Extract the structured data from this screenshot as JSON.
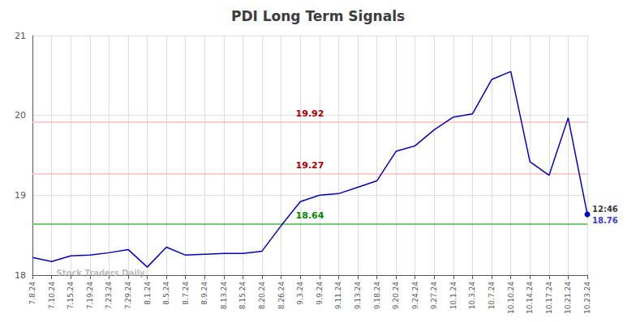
{
  "chart_data": {
    "type": "line",
    "title": "PDI Long Term Signals",
    "categories": [
      "7.8.24",
      "7.10.24",
      "7.15.24",
      "7.19.24",
      "7.23.24",
      "7.29.24",
      "8.1.24",
      "8.5.24",
      "8.7.24",
      "8.9.24",
      "8.13.24",
      "8.15.24",
      "8.20.24",
      "8.26.24",
      "9.3.24",
      "9.9.24",
      "9.11.24",
      "9.13.24",
      "9.18.24",
      "9.20.24",
      "9.24.24",
      "9.27.24",
      "10.1.24",
      "10.3.24",
      "10.7.24",
      "10.10.24",
      "10.14.24",
      "10.17.24",
      "10.21.24",
      "10.23.24"
    ],
    "values": [
      18.22,
      18.17,
      18.24,
      18.25,
      18.28,
      18.32,
      18.1,
      18.35,
      18.25,
      18.26,
      18.27,
      18.27,
      18.3,
      18.62,
      18.92,
      19.0,
      19.02,
      19.1,
      19.18,
      19.55,
      19.62,
      19.82,
      19.98,
      20.02,
      20.45,
      20.55,
      19.42,
      19.25,
      19.97,
      18.76
    ],
    "color": "#0000cc",
    "reference_lines": [
      {
        "value": 18.64,
        "label": "18.64",
        "color": "#44bb44",
        "label_color": "#008800"
      },
      {
        "value": 19.92,
        "label": "19.92",
        "color": "#ffbbbb",
        "label_color": "#aa0000"
      },
      {
        "value": 19.27,
        "label": "19.27",
        "color": "#ffbbbb",
        "label_color": "#aa0000"
      }
    ],
    "annotations": [
      {
        "text": "12:46",
        "x": "10.23.24",
        "y": 18.76,
        "color": "#000000"
      },
      {
        "text": "18.76",
        "x": "10.23.24",
        "y": 18.76,
        "color": "#0000cc"
      },
      {
        "text": "Stock Traders Daily",
        "x": "7.10.24",
        "y": 18.03,
        "color": "#aaaaaa"
      }
    ],
    "ylim": [
      18,
      21
    ],
    "yticks": [
      18,
      19,
      20,
      21
    ],
    "grid": true
  }
}
